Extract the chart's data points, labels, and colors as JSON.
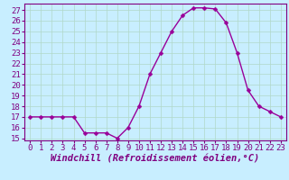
{
  "x": [
    0,
    1,
    2,
    3,
    4,
    5,
    6,
    7,
    8,
    9,
    10,
    11,
    12,
    13,
    14,
    15,
    16,
    17,
    18,
    19,
    20,
    21,
    22,
    23
  ],
  "y": [
    17,
    17,
    17,
    17,
    17,
    15.5,
    15.5,
    15.5,
    15,
    16,
    18,
    21,
    23,
    25,
    26.5,
    27.2,
    27.2,
    27.1,
    25.8,
    23,
    19.5,
    18,
    17.5,
    17
  ],
  "line_color": "#990099",
  "marker_color": "#990099",
  "bg_color": "#c8eeff",
  "plot_bg_color": "#c8eeff",
  "grid_color": "#b0d8c8",
  "border_color": "#800080",
  "xlabel": "Windchill (Refroidissement éolien,°C)",
  "xlim": [
    -0.5,
    23.5
  ],
  "ylim": [
    14.8,
    27.6
  ],
  "yticks": [
    15,
    16,
    17,
    18,
    19,
    20,
    21,
    22,
    23,
    24,
    25,
    26,
    27
  ],
  "xticks": [
    0,
    1,
    2,
    3,
    4,
    5,
    6,
    7,
    8,
    9,
    10,
    11,
    12,
    13,
    14,
    15,
    16,
    17,
    18,
    19,
    20,
    21,
    22,
    23
  ],
  "xlabel_fontsize": 7.5,
  "tick_fontsize": 6.5,
  "line_width": 1.0,
  "marker_size": 2.5,
  "marker": "D"
}
